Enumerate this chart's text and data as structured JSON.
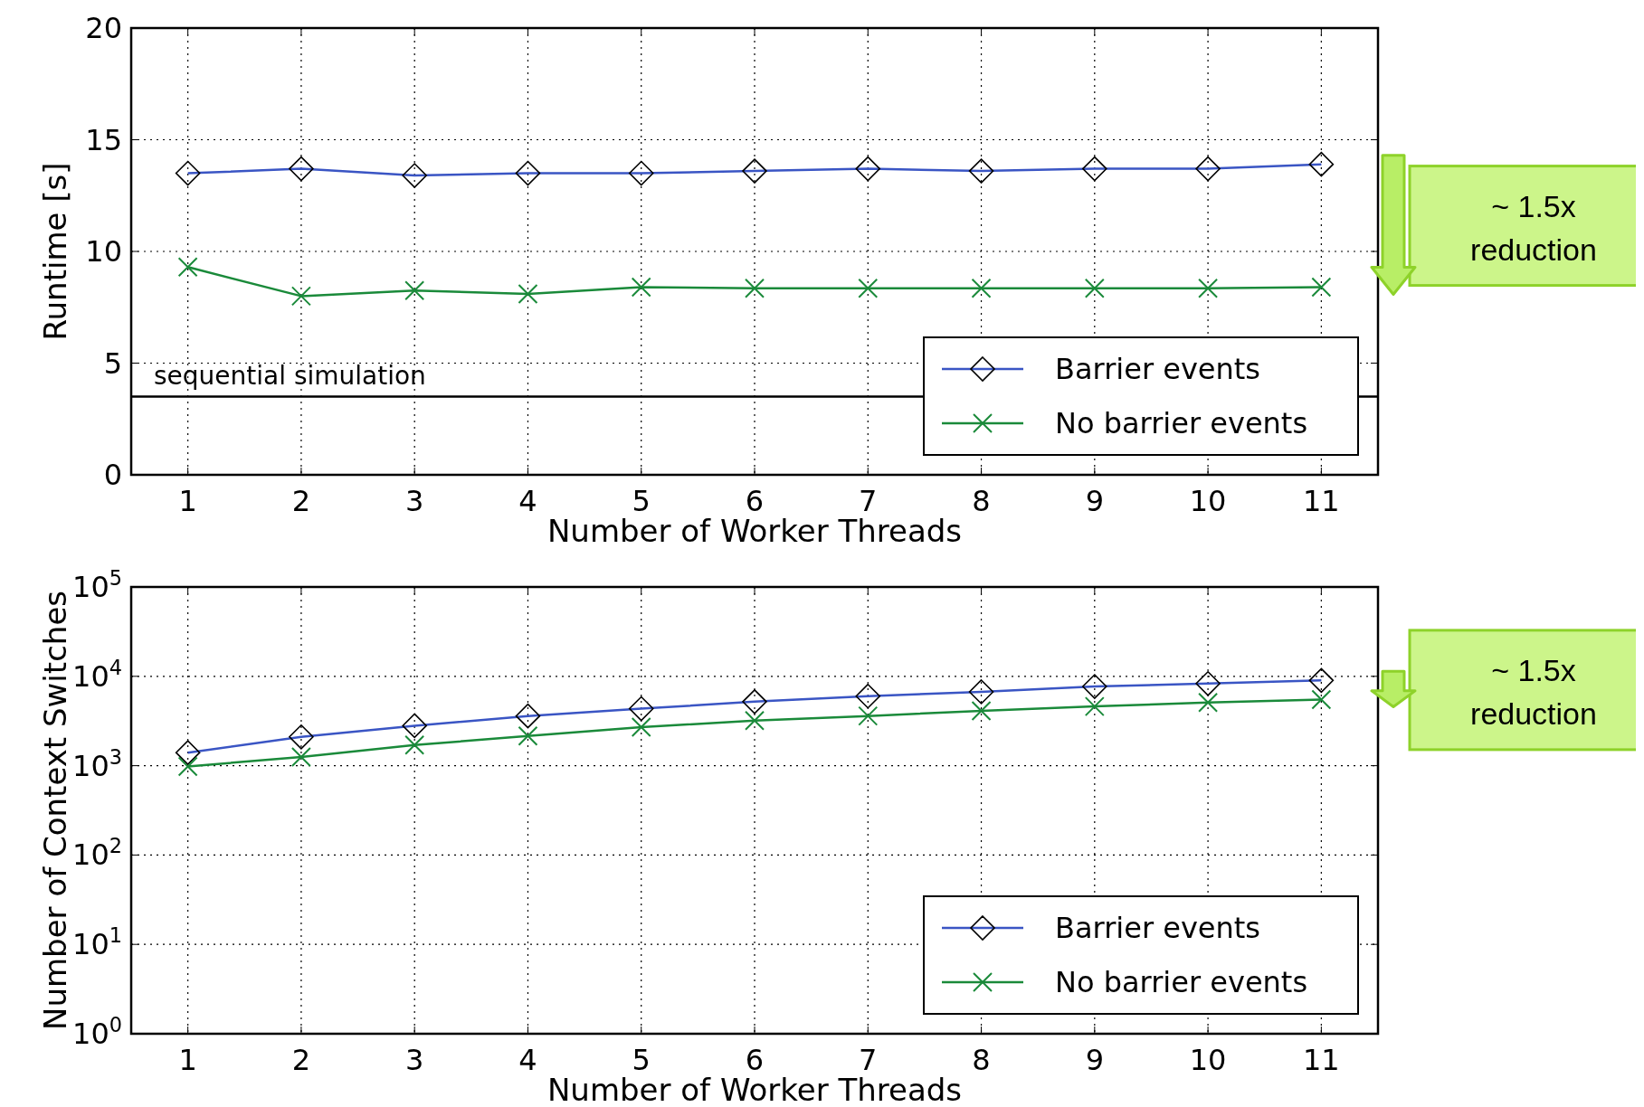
{
  "chart_data": [
    {
      "type": "line",
      "xlabel": "Number of Worker Threads",
      "ylabel": "Runtime [s]",
      "x": [
        1,
        2,
        3,
        4,
        5,
        6,
        7,
        8,
        9,
        10,
        11
      ],
      "xlim": [
        0.5,
        11.5
      ],
      "xticks": [
        1,
        2,
        3,
        4,
        5,
        6,
        7,
        8,
        9,
        10,
        11
      ],
      "ylim": [
        0,
        20
      ],
      "yticks": [
        0,
        5,
        10,
        15,
        20
      ],
      "grid": true,
      "legend": "bottom right",
      "series": [
        {
          "name": "Barrier events",
          "color": "#3a55c4",
          "marker": "diamond",
          "values": [
            13.5,
            13.7,
            13.4,
            13.5,
            13.5,
            13.6,
            13.7,
            13.6,
            13.7,
            13.7,
            13.9
          ]
        },
        {
          "name": "No barrier events",
          "color": "#1a8a3a",
          "marker": "cross",
          "values": [
            9.3,
            8.0,
            8.25,
            8.1,
            8.4,
            8.35,
            8.35,
            8.35,
            8.35,
            8.35,
            8.4
          ]
        }
      ],
      "ref_lines": [
        {
          "axis": "y",
          "value": 3.5,
          "label": "sequential simulation",
          "color": "#000000"
        }
      ],
      "annotations": [
        "~ 1.5x reduction"
      ]
    },
    {
      "type": "line",
      "xlabel": "Number of Worker Threads",
      "ylabel": "Number of Context Switches",
      "x": [
        1,
        2,
        3,
        4,
        5,
        6,
        7,
        8,
        9,
        10,
        11
      ],
      "xlim": [
        0.5,
        11.5
      ],
      "xticks": [
        1,
        2,
        3,
        4,
        5,
        6,
        7,
        8,
        9,
        10,
        11
      ],
      "log": "y",
      "ylim": [
        1,
        100000
      ],
      "yticks": [
        {
          "value": 1,
          "label": "10$^{0}$"
        },
        {
          "value": 10,
          "label": "10$^{1}$"
        },
        {
          "value": 100,
          "label": "10$^{2}$"
        },
        {
          "value": 1000,
          "label": "10$^{3}$"
        },
        {
          "value": 10000,
          "label": "10$^{4}$"
        },
        {
          "value": 100000,
          "label": "10$^{5}$"
        }
      ],
      "grid": true,
      "legend": "bottom right",
      "series": [
        {
          "name": "Barrier events",
          "color": "#3a55c4",
          "marker": "diamond",
          "values": [
            1400,
            2100,
            2800,
            3600,
            4350,
            5200,
            6000,
            6700,
            7700,
            8300,
            9000
          ]
        },
        {
          "name": "No barrier events",
          "color": "#1a8a3a",
          "marker": "cross",
          "values": [
            980,
            1250,
            1700,
            2150,
            2700,
            3200,
            3600,
            4100,
            4600,
            5100,
            5500
          ]
        }
      ],
      "annotations": [
        "~ 1.5x reduction"
      ]
    }
  ]
}
